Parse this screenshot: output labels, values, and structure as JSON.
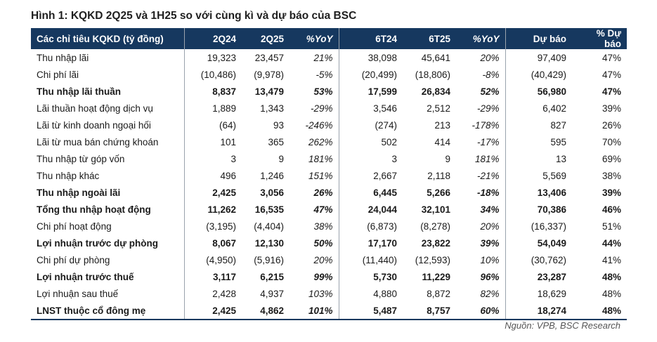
{
  "title": "Hình 1: KQKD 2Q25 và 1H25 so với cùng kì và dự báo của BSC",
  "headers": [
    "Các chỉ tiêu KQKD (tỷ đồng)",
    "2Q24",
    "2Q25",
    "%YoY",
    "6T24",
    "6T25",
    "%YoY",
    "Dự báo",
    "% Dự báo"
  ],
  "rows": [
    {
      "label": "Thu nhập lãi",
      "bold": false,
      "v": [
        "19,323",
        "23,457",
        "21%",
        "38,098",
        "45,641",
        "20%",
        "97,409",
        "47%"
      ]
    },
    {
      "label": "Chi phí lãi",
      "bold": false,
      "v": [
        "(10,486)",
        "(9,978)",
        "-5%",
        "(20,499)",
        "(18,806)",
        "-8%",
        "(40,429)",
        "47%"
      ]
    },
    {
      "label": "Thu nhập lãi thuần",
      "bold": true,
      "v": [
        "8,837",
        "13,479",
        "53%",
        "17,599",
        "26,834",
        "52%",
        "56,980",
        "47%"
      ]
    },
    {
      "label": "Lãi thuần hoạt động dịch vụ",
      "bold": false,
      "v": [
        "1,889",
        "1,343",
        "-29%",
        "3,546",
        "2,512",
        "-29%",
        "6,402",
        "39%"
      ]
    },
    {
      "label": "Lãi từ kinh doanh ngoại hối",
      "bold": false,
      "v": [
        "(64)",
        "93",
        "-246%",
        "(274)",
        "213",
        "-178%",
        "827",
        "26%"
      ]
    },
    {
      "label": "Lãi từ mua bán chứng khoán",
      "bold": false,
      "v": [
        "101",
        "365",
        "262%",
        "502",
        "414",
        "-17%",
        "595",
        "70%"
      ]
    },
    {
      "label": "Thu nhập từ góp vốn",
      "bold": false,
      "v": [
        "3",
        "9",
        "181%",
        "3",
        "9",
        "181%",
        "13",
        "69%"
      ]
    },
    {
      "label": "Thu nhập khác",
      "bold": false,
      "v": [
        "496",
        "1,246",
        "151%",
        "2,667",
        "2,118",
        "-21%",
        "5,569",
        "38%"
      ]
    },
    {
      "label": "Thu nhập ngoài lãi",
      "bold": true,
      "v": [
        "2,425",
        "3,056",
        "26%",
        "6,445",
        "5,266",
        "-18%",
        "13,406",
        "39%"
      ]
    },
    {
      "label": "Tổng thu nhập hoạt động",
      "bold": true,
      "v": [
        "11,262",
        "16,535",
        "47%",
        "24,044",
        "32,101",
        "34%",
        "70,386",
        "46%"
      ]
    },
    {
      "label": "Chi phí hoạt động",
      "bold": false,
      "v": [
        "(3,195)",
        "(4,404)",
        "38%",
        "(6,873)",
        "(8,278)",
        "20%",
        "(16,337)",
        "51%"
      ]
    },
    {
      "label": "Lợi nhuận trước dự phòng",
      "bold": true,
      "v": [
        "8,067",
        "12,130",
        "50%",
        "17,170",
        "23,822",
        "39%",
        "54,049",
        "44%"
      ]
    },
    {
      "label": "Chi phí dự phòng",
      "bold": false,
      "v": [
        "(4,950)",
        "(5,916)",
        "20%",
        "(11,440)",
        "(12,593)",
        "10%",
        "(30,762)",
        "41%"
      ]
    },
    {
      "label": "Lợi nhuận trước thuế",
      "bold": true,
      "v": [
        "3,117",
        "6,215",
        "99%",
        "5,730",
        "11,229",
        "96%",
        "23,287",
        "48%"
      ]
    },
    {
      "label": "Lợi nhuận sau thuế",
      "bold": false,
      "v": [
        "2,428",
        "4,937",
        "103%",
        "4,880",
        "8,872",
        "82%",
        "18,629",
        "48%"
      ]
    },
    {
      "label": "LNST thuộc cổ đông mẹ",
      "bold": true,
      "v": [
        "2,425",
        "4,862",
        "101%",
        "5,487",
        "8,757",
        "60%",
        "18,274",
        "48%"
      ]
    }
  ],
  "source": "Nguồn: VPB, BSC Research"
}
